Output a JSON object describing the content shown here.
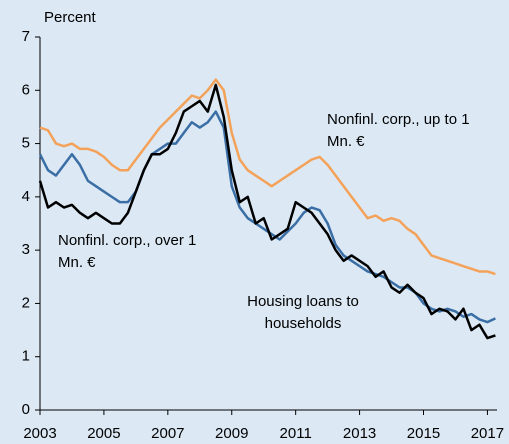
{
  "chart_data": {
    "type": "line",
    "y_label": "Percent",
    "x": [
      2003,
      2003.25,
      2003.5,
      2003.75,
      2004,
      2004.25,
      2004.5,
      2004.75,
      2005,
      2005.25,
      2005.5,
      2005.75,
      2006,
      2006.25,
      2006.5,
      2006.75,
      2007,
      2007.25,
      2007.5,
      2007.75,
      2008,
      2008.25,
      2008.5,
      2008.75,
      2009,
      2009.25,
      2009.5,
      2009.75,
      2010,
      2010.25,
      2010.5,
      2010.75,
      2011,
      2011.25,
      2011.5,
      2011.75,
      2012,
      2012.25,
      2012.5,
      2012.75,
      2013,
      2013.25,
      2013.5,
      2013.75,
      2014,
      2014.25,
      2014.5,
      2014.75,
      2015,
      2015.25,
      2015.5,
      2015.75,
      2016,
      2016.25,
      2016.5,
      2016.75,
      2017,
      2017.25
    ],
    "series": [
      {
        "name": "Nonfinl. corp., up to 1 Mn. €",
        "color": "#f4a259",
        "values": [
          5.3,
          5.25,
          5.0,
          4.95,
          5.0,
          4.9,
          4.9,
          4.85,
          4.75,
          4.6,
          4.5,
          4.5,
          4.7,
          4.9,
          5.1,
          5.3,
          5.45,
          5.6,
          5.75,
          5.9,
          5.85,
          6.0,
          6.2,
          6.0,
          5.2,
          4.7,
          4.5,
          4.4,
          4.3,
          4.2,
          4.3,
          4.4,
          4.5,
          4.6,
          4.7,
          4.75,
          4.6,
          4.4,
          4.2,
          4.0,
          3.8,
          3.6,
          3.65,
          3.55,
          3.6,
          3.55,
          3.4,
          3.3,
          3.1,
          2.9,
          2.85,
          2.8,
          2.75,
          2.7,
          2.65,
          2.6,
          2.6,
          2.55
        ]
      },
      {
        "name": "Nonfinl. corp., over 1 Mn. €",
        "color": "#3a6ea5",
        "values": [
          4.8,
          4.5,
          4.4,
          4.6,
          4.8,
          4.6,
          4.3,
          4.2,
          4.1,
          4.0,
          3.9,
          3.9,
          4.1,
          4.5,
          4.8,
          4.9,
          5.0,
          5.0,
          5.2,
          5.4,
          5.3,
          5.4,
          5.6,
          5.3,
          4.2,
          3.8,
          3.6,
          3.5,
          3.4,
          3.3,
          3.2,
          3.35,
          3.5,
          3.7,
          3.8,
          3.75,
          3.5,
          3.1,
          2.9,
          2.8,
          2.7,
          2.6,
          2.55,
          2.5,
          2.4,
          2.3,
          2.3,
          2.2,
          2.0,
          1.9,
          1.85,
          1.9,
          1.85,
          1.75,
          1.8,
          1.7,
          1.65,
          1.72
        ]
      },
      {
        "name": "Housing loans to households",
        "color": "#000000",
        "values": [
          4.3,
          3.8,
          3.9,
          3.8,
          3.85,
          3.7,
          3.6,
          3.7,
          3.6,
          3.5,
          3.5,
          3.7,
          4.1,
          4.5,
          4.8,
          4.8,
          4.9,
          5.2,
          5.6,
          5.7,
          5.8,
          5.6,
          6.1,
          5.5,
          4.5,
          3.9,
          4.0,
          3.5,
          3.6,
          3.2,
          3.3,
          3.4,
          3.9,
          3.8,
          3.7,
          3.5,
          3.3,
          3.0,
          2.8,
          2.9,
          2.8,
          2.7,
          2.5,
          2.6,
          2.3,
          2.2,
          2.35,
          2.2,
          2.1,
          1.8,
          1.9,
          1.85,
          1.7,
          1.9,
          1.5,
          1.6,
          1.35,
          1.4
        ]
      }
    ],
    "annotations": [
      {
        "lines": [
          "Nonfinl. corp., up to 1",
          "Mn. €"
        ]
      },
      {
        "lines": [
          "Nonfinl. corp., over 1",
          "Mn. €"
        ]
      },
      {
        "lines": [
          "Housing loans to",
          "households"
        ]
      }
    ],
    "xlim": [
      2003,
      2017.3
    ],
    "xticks": [
      2003,
      2005,
      2007,
      2009,
      2011,
      2013,
      2015,
      2017
    ],
    "ylim": [
      0,
      7
    ],
    "yticks": [
      0,
      1,
      2,
      3,
      4,
      5,
      6,
      7
    ],
    "grid": false
  }
}
